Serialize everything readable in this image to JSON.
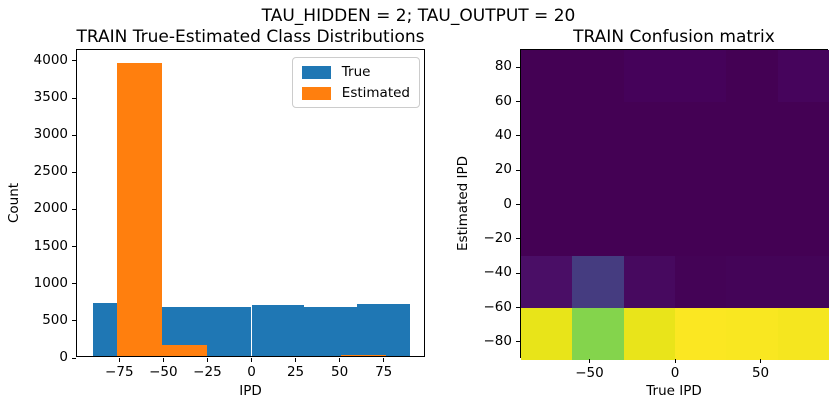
{
  "figure_title": "TAU_HIDDEN = 2; TAU_OUTPUT = 20",
  "palette": {
    "true_series": "#1f77b4",
    "estimated_series": "#ff7f0e",
    "viridis_min": "#440154",
    "viridis_max": "#fde725",
    "axis_color": "#000000",
    "legend_border": "#cccccc"
  },
  "chart_data": [
    {
      "type": "bar",
      "subtype": "overlaid-histograms",
      "title": "TRAIN True-Estimated Class Distributions",
      "xlabel": "IPD",
      "ylabel": "Count",
      "xlim": [
        -99,
        99
      ],
      "ylim": [
        0,
        4148
      ],
      "grid": false,
      "legend_position": "upper right",
      "legend": {
        "items": [
          {
            "label": "True",
            "color": "#1f77b4"
          },
          {
            "label": "Estimated",
            "color": "#ff7f0e"
          }
        ]
      },
      "x_ticks": [
        {
          "value": -75,
          "label": "−75"
        },
        {
          "value": -50,
          "label": "−50"
        },
        {
          "value": -25,
          "label": "−25"
        },
        {
          "value": 0,
          "label": "0"
        },
        {
          "value": 25,
          "label": "25"
        },
        {
          "value": 50,
          "label": "50"
        },
        {
          "value": 75,
          "label": "75"
        }
      ],
      "y_ticks": [
        {
          "value": 0,
          "label": "0"
        },
        {
          "value": 500,
          "label": "500"
        },
        {
          "value": 1000,
          "label": "1000"
        },
        {
          "value": 1500,
          "label": "1500"
        },
        {
          "value": 2000,
          "label": "2000"
        },
        {
          "value": 2500,
          "label": "2500"
        },
        {
          "value": 3000,
          "label": "3000"
        },
        {
          "value": 3500,
          "label": "3500"
        },
        {
          "value": 4000,
          "label": "4000"
        }
      ],
      "series": [
        {
          "name": "True",
          "color": "#1f77b4",
          "bin_edges": [
            -90,
            -60,
            -30,
            0,
            30,
            60,
            90
          ],
          "counts": [
            710,
            655,
            655,
            685,
            660,
            700
          ]
        },
        {
          "name": "Estimated",
          "color": "#ff7f0e",
          "bin_edges": [
            -76.2,
            -50.8,
            -25.4,
            0,
            25.4,
            50.8,
            76.2
          ],
          "counts": [
            3940,
            150,
            0,
            0,
            0,
            15
          ]
        }
      ]
    },
    {
      "type": "heatmap",
      "title": "TRAIN Confusion matrix",
      "xlabel": "True IPD",
      "ylabel": "Estimated IPD",
      "xlim": [
        -90,
        90
      ],
      "ylim": [
        -90,
        90
      ],
      "colormap": "viridis",
      "colorbar": false,
      "x_ticks": [
        {
          "value": -50,
          "label": "−50"
        },
        {
          "value": 0,
          "label": "0"
        },
        {
          "value": 50,
          "label": "50"
        }
      ],
      "y_ticks": [
        {
          "value": 80,
          "label": "80"
        },
        {
          "value": 60,
          "label": "60"
        },
        {
          "value": 40,
          "label": "40"
        },
        {
          "value": 20,
          "label": "20"
        },
        {
          "value": 0,
          "label": "0"
        },
        {
          "value": -20,
          "label": "−20"
        },
        {
          "value": -40,
          "label": "−40"
        },
        {
          "value": -60,
          "label": "−60"
        },
        {
          "value": -80,
          "label": "−80"
        }
      ],
      "col_edges_true_ipd": [
        -90,
        -60,
        -30,
        0,
        30,
        60,
        90
      ],
      "row_edges_estimated_ipd_top_to_bottom": [
        90,
        60,
        30,
        0,
        -30,
        -60,
        -90
      ],
      "cell_colors_rows_top_to_bottom": [
        [
          "#440154",
          "#440154",
          "#45025a",
          "#45025a",
          "#440154",
          "#46045c"
        ],
        [
          "#440154",
          "#440154",
          "#440154",
          "#440154",
          "#440154",
          "#440154"
        ],
        [
          "#440154",
          "#440154",
          "#440154",
          "#440154",
          "#440154",
          "#440154"
        ],
        [
          "#440154",
          "#440154",
          "#440154",
          "#440154",
          "#440154",
          "#440154"
        ],
        [
          "#4a0e66",
          "#453c80",
          "#47095f",
          "#440356",
          "#440458",
          "#440458"
        ],
        [
          "#e8e419",
          "#84d44c",
          "#e9e41a",
          "#fbe722",
          "#f9e721",
          "#f5e61f"
        ]
      ],
      "approx_normalized_intensity_rows_top_to_bottom": [
        [
          0,
          0,
          0.02,
          0.02,
          0,
          0.03
        ],
        [
          0,
          0,
          0,
          0,
          0,
          0
        ],
        [
          0,
          0,
          0,
          0,
          0,
          0
        ],
        [
          0,
          0,
          0,
          0,
          0,
          0
        ],
        [
          0.09,
          0.27,
          0.06,
          0.01,
          0.02,
          0.02
        ],
        [
          0.92,
          0.73,
          0.92,
          1.0,
          0.99,
          0.97
        ]
      ]
    }
  ]
}
